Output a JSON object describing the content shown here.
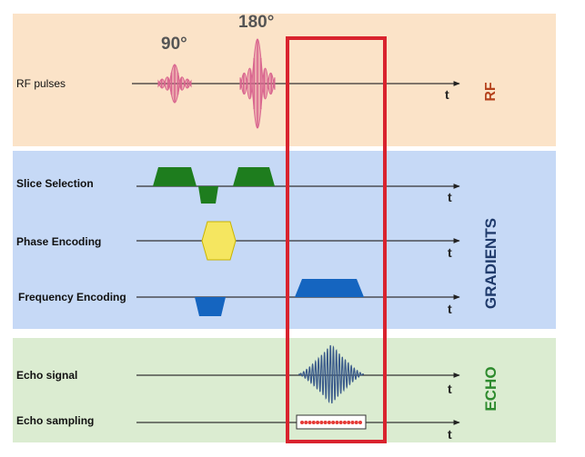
{
  "rf": {
    "row_label": "RF pulses",
    "pulse_90": "90°",
    "pulse_180": "180°",
    "axis": "t",
    "section": "RF",
    "section_color": "#b5421d"
  },
  "gradients": {
    "slice_label": "Slice Selection",
    "phase_label": "Phase Encoding",
    "freq_label": "Frequency Encoding",
    "axis": "t",
    "section": "GRADIENTS",
    "section_color": "#1f3a6b"
  },
  "echo": {
    "signal_label": "Echo signal",
    "sampling_label": "Echo sampling",
    "axis": "t",
    "section": "ECHO",
    "section_color": "#2e8b2e"
  },
  "colors": {
    "slice": "#1e7d1e",
    "phase": "#f5e660",
    "freq": "#1565c0",
    "rf_pulse": "#d9668f",
    "echo_wave": "#3a5a8a",
    "highlight": "#d9232e",
    "sample_dot": "#e53935"
  }
}
